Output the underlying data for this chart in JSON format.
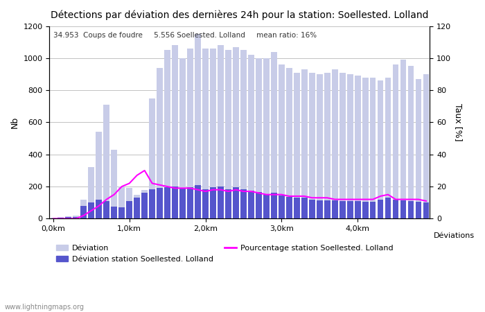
{
  "title": "Détections par déviation des dernières 24h pour la station: Soellested. Lolland",
  "subtitle": "34.953  Coups de foudre     5.556 Soellested. Lolland     mean ratio: 16%",
  "ylabel_left": "Nb",
  "ylabel_right": "Taux [%]",
  "xlabel": "Déviations",
  "watermark": "www.lightningmaps.org",
  "ylim_left": [
    0,
    1200
  ],
  "ylim_right": [
    0,
    120
  ],
  "yticks_left": [
    0,
    200,
    400,
    600,
    800,
    1000,
    1200
  ],
  "yticks_right": [
    0,
    20,
    40,
    60,
    80,
    100,
    120
  ],
  "xtick_positions": [
    0,
    10,
    20,
    30,
    40
  ],
  "xtick_labels": [
    "0,0km",
    "1,0km",
    "2,0km",
    "3,0km",
    "4,0km"
  ],
  "x_positions": [
    0,
    1,
    2,
    3,
    4,
    5,
    6,
    7,
    8,
    9,
    10,
    11,
    12,
    13,
    14,
    15,
    16,
    17,
    18,
    19,
    20,
    21,
    22,
    23,
    24,
    25,
    26,
    27,
    28,
    29,
    30,
    31,
    32,
    33,
    34,
    35,
    36,
    37,
    38,
    39,
    40,
    41,
    42,
    43,
    44,
    45,
    46,
    47,
    48,
    49
  ],
  "deviation_all": [
    5,
    10,
    15,
    20,
    120,
    320,
    540,
    710,
    430,
    200,
    190,
    150,
    180,
    750,
    940,
    1050,
    1080,
    1000,
    1060,
    1150,
    1060,
    1060,
    1080,
    1050,
    1070,
    1050,
    1020,
    1000,
    1000,
    1040,
    960,
    940,
    910,
    930,
    910,
    900,
    910,
    930,
    910,
    900,
    890,
    880,
    880,
    860,
    880,
    960,
    990,
    950,
    870,
    900
  ],
  "deviation_station": [
    2,
    5,
    8,
    12,
    80,
    100,
    120,
    110,
    75,
    70,
    110,
    130,
    160,
    185,
    190,
    195,
    200,
    190,
    195,
    210,
    185,
    195,
    200,
    185,
    195,
    185,
    175,
    165,
    150,
    160,
    145,
    135,
    130,
    130,
    120,
    115,
    115,
    115,
    110,
    110,
    108,
    105,
    105,
    120,
    130,
    120,
    115,
    110,
    105,
    100
  ],
  "percentage": [
    0,
    0,
    0,
    0,
    2,
    5,
    8,
    12,
    15,
    20,
    22,
    27,
    30,
    22,
    21,
    20,
    19,
    19,
    19,
    18,
    17,
    18,
    18,
    17,
    18,
    17,
    17,
    16,
    15,
    15,
    15,
    14,
    14,
    14,
    13,
    13,
    13,
    12,
    12,
    12,
    12,
    12,
    12,
    14,
    15,
    12,
    12,
    12,
    12,
    11
  ],
  "bar_all_color": "#c8cce8",
  "bar_station_color": "#5555cc",
  "line_color": "#ff00ff",
  "background_color": "#ffffff",
  "legend_labels": [
    "Déviation",
    "Déviation station Soellested. Lolland",
    "Déviations",
    "Pourcentage station Soellested. Lolland"
  ]
}
